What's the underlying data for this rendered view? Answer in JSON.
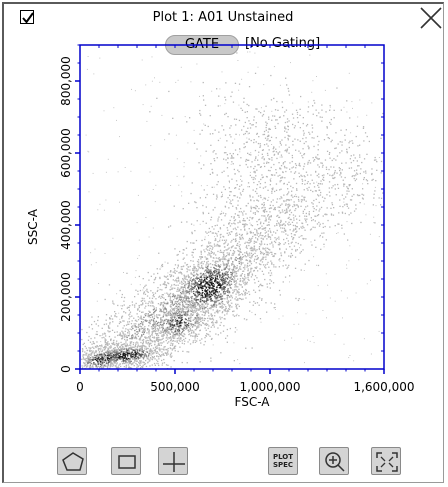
{
  "header": {
    "title": "Plot 1: A01 Unstained",
    "gate_button_label": "GATE",
    "gating_status": "[No Gating]",
    "checkbox_checked": true
  },
  "toolbar": {
    "plot_spec_line1": "PLOT",
    "plot_spec_line2": "SPEC",
    "tools": [
      "polygon-gate-icon",
      "rectangle-gate-icon",
      "quadrant-gate-icon",
      "plot-spec-icon",
      "zoom-in-icon",
      "fit-view-icon"
    ]
  },
  "colors": {
    "axis": "#0000cc",
    "density_low": "#b8b8b8",
    "density_high": "#1a1a1a"
  },
  "chart_data": {
    "type": "scatter",
    "title": "",
    "xlabel": "FSC-A",
    "ylabel": "SSC-A",
    "xlim": [
      0,
      1600000
    ],
    "ylim": [
      0,
      900000
    ],
    "x_ticks": [
      0,
      500000,
      1000000,
      1600000
    ],
    "x_tick_labels": [
      "0",
      "500,000",
      "1,000,000",
      "1,600,000"
    ],
    "y_ticks": [
      0,
      200000,
      400000,
      600000,
      800000
    ],
    "y_tick_labels": [
      "0",
      "200,000",
      "400,000",
      "600,000",
      "800,000"
    ],
    "grid": false,
    "series": [
      {
        "clusters": [
          {
            "x": 120000,
            "y": 30000,
            "density": "high"
          },
          {
            "x": 250000,
            "y": 40000,
            "density": "high"
          },
          {
            "x": 520000,
            "y": 130000,
            "density": "medium"
          },
          {
            "x": 680000,
            "y": 230000,
            "density": "high"
          },
          {
            "x": 950000,
            "y": 420000,
            "density": "low"
          },
          {
            "x": 1150000,
            "y": 650000,
            "density": "low"
          }
        ]
      }
    ]
  }
}
